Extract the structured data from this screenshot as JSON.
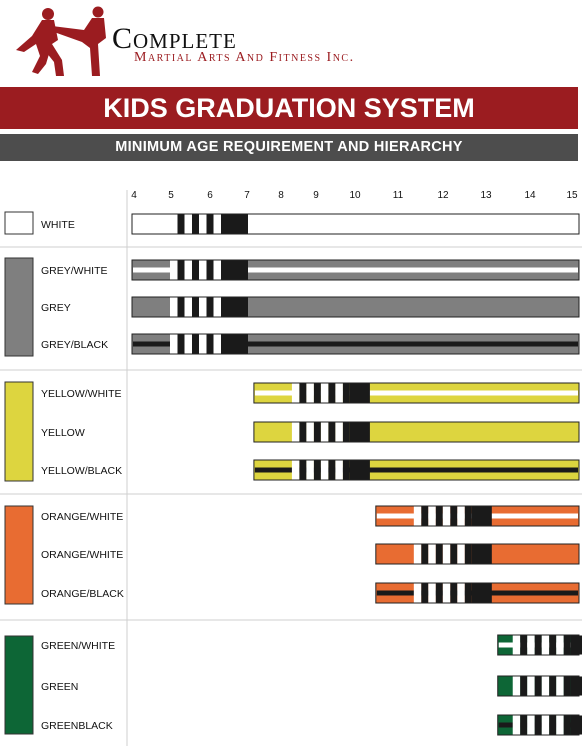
{
  "header": {
    "logo_title": "Complete",
    "logo_subtitle": "Martial Arts And Fitness Inc.",
    "title": "KIDS GRADUATION SYSTEM",
    "subtitle": "MINIMUM AGE REQUIREMENT AND HIERARCHY"
  },
  "colors": {
    "brand_red": "#9b1c20",
    "dark_gray": "#4d4d4d",
    "white": "#ffffff",
    "grey": "#7f7f7f",
    "yellow": "#ddd53f",
    "orange": "#e86c32",
    "green": "#0d6636",
    "black": "#1a1a1a"
  },
  "chart_data": {
    "type": "bar",
    "x_ticks": [
      4,
      5,
      6,
      7,
      8,
      9,
      10,
      11,
      12,
      13,
      14,
      15
    ],
    "xlim": [
      4,
      15
    ],
    "groups": [
      {
        "color": "white",
        "belts": [
          {
            "name": "WHITE",
            "start_age": 4,
            "stripe": "none",
            "stripe_color": ""
          }
        ]
      },
      {
        "color": "grey",
        "belts": [
          {
            "name": "GREY/WHITE",
            "start_age": 4,
            "stripe": "white",
            "stripe_color": "#ffffff"
          },
          {
            "name": "GREY",
            "start_age": 4,
            "stripe": "none",
            "stripe_color": ""
          },
          {
            "name": "GREY/BLACK",
            "start_age": 4,
            "stripe": "black",
            "stripe_color": "#1a1a1a"
          }
        ]
      },
      {
        "color": "yellow",
        "belts": [
          {
            "name": "YELLOW/WHITE",
            "start_age": 7,
            "stripe": "white",
            "stripe_color": "#ffffff"
          },
          {
            "name": "YELLOW",
            "start_age": 7,
            "stripe": "none",
            "stripe_color": ""
          },
          {
            "name": "YELLOW/BLACK",
            "start_age": 7,
            "stripe": "black",
            "stripe_color": "#1a1a1a"
          }
        ]
      },
      {
        "color": "orange",
        "belts": [
          {
            "name": "ORANGE/WHITE",
            "start_age": 10,
            "stripe": "white",
            "stripe_color": "#ffffff"
          },
          {
            "name": "ORANGE/WHITE",
            "start_age": 10,
            "stripe": "none",
            "stripe_color": ""
          },
          {
            "name": "ORANGE/BLACK",
            "start_age": 10,
            "stripe": "black",
            "stripe_color": "#1a1a1a"
          }
        ]
      },
      {
        "color": "green",
        "belts": [
          {
            "name": "GREEN/WHITE",
            "start_age": 13,
            "stripe": "white",
            "stripe_color": "#ffffff"
          },
          {
            "name": "GREEN",
            "start_age": 13,
            "stripe": "none",
            "stripe_color": ""
          },
          {
            "name": "GREENBLACK",
            "start_age": 13,
            "stripe": "black",
            "stripe_color": "#1a1a1a"
          }
        ]
      }
    ],
    "grid": false,
    "legend": "left"
  }
}
